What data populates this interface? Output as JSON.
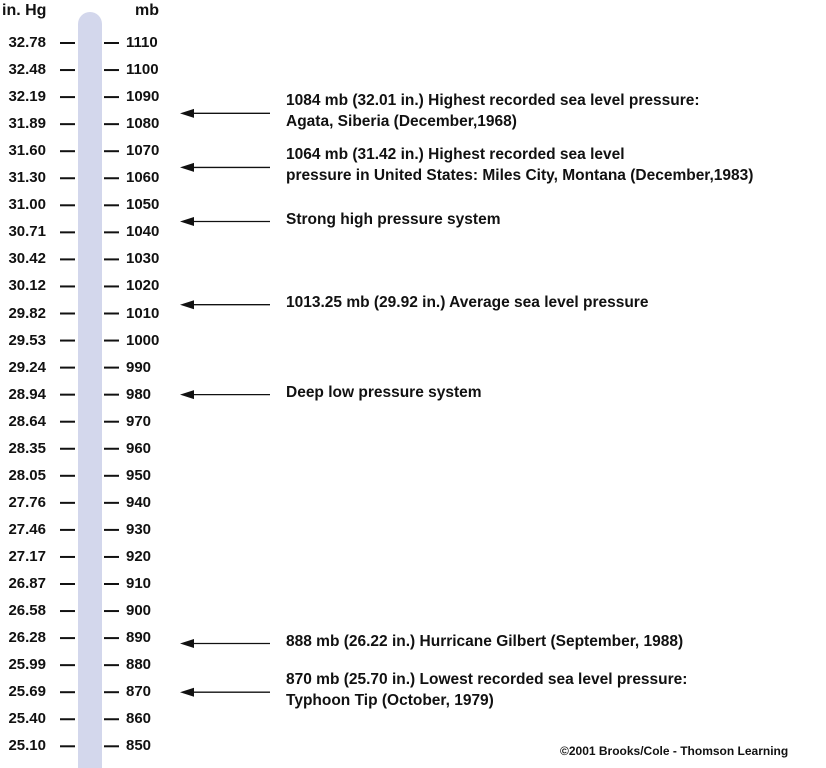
{
  "headers": {
    "inhg": "in. Hg",
    "mb": "mb"
  },
  "scale": {
    "inhg": [
      "32.78",
      "32.48",
      "32.19",
      "31.89",
      "31.60",
      "31.30",
      "31.00",
      "30.71",
      "30.42",
      "30.12",
      "29.82",
      "29.53",
      "29.24",
      "28.94",
      "28.64",
      "28.35",
      "28.05",
      "27.76",
      "27.46",
      "27.17",
      "26.87",
      "26.58",
      "26.28",
      "25.99",
      "25.69",
      "25.40",
      "25.10"
    ],
    "mb": [
      "1110",
      "1100",
      "1090",
      "1080",
      "1070",
      "1060",
      "1050",
      "1040",
      "1030",
      "1020",
      "1010",
      "1000",
      "990",
      "980",
      "970",
      "960",
      "950",
      "940",
      "930",
      "920",
      "910",
      "900",
      "890",
      "880",
      "870",
      "860",
      "850"
    ]
  },
  "annotations": [
    {
      "mb_value": 1084,
      "lines": [
        "1084 mb (32.01 in.) Highest recorded sea level pressure:",
        "Agata, Siberia (December,1968)"
      ]
    },
    {
      "mb_value": 1064,
      "lines": [
        "1064 mb (31.42 in.) Highest recorded sea level",
        "pressure in United States: Miles City, Montana (December,1983)"
      ]
    },
    {
      "mb_value": 1044,
      "lines": [
        "Strong high pressure system"
      ]
    },
    {
      "mb_value": 1013.25,
      "lines": [
        "1013.25 mb (29.92 in.) Average sea level pressure"
      ]
    },
    {
      "mb_value": 980,
      "lines": [
        "Deep low pressure system"
      ]
    },
    {
      "mb_value": 888,
      "lines": [
        "888 mb (26.22 in.) Hurricane Gilbert (September, 1988)"
      ]
    },
    {
      "mb_value": 870,
      "lines": [
        "870 mb (25.70 in.) Lowest recorded sea level pressure:",
        "Typhoon Tip (October, 1979)"
      ]
    }
  ],
  "copyright": "©2001 Brooks/Cole - Thomson Learning",
  "colors": {
    "bar": "#d3d7ec",
    "ink": "#111111"
  }
}
